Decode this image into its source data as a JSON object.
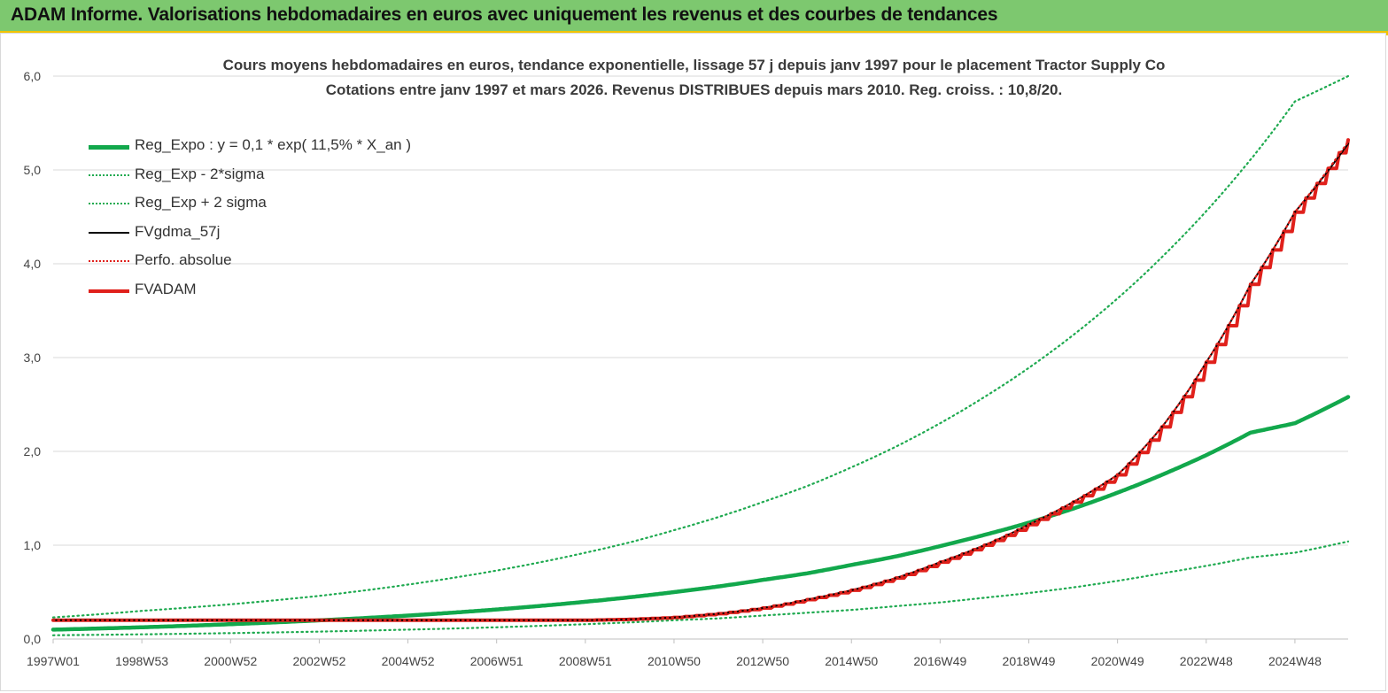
{
  "header": {
    "title": "ADAM Informe. Valorisations hebdomadaires en euros avec uniquement les revenus et des courbes de tendances"
  },
  "colors": {
    "banner": "#7dc86f",
    "regression": "#12a84c",
    "sigma": "#1faa50",
    "fvgdma": "#000000",
    "perfo": "#e0201b",
    "fvadam": "#e0201b",
    "grid": "#d9d9d9"
  },
  "chart_data": {
    "type": "line",
    "title": "Cours moyens hebdomadaires en euros, tendance exponentielle, lissage 57 j depuis janv 1997 pour le placement Tractor Supply Co",
    "subtitle": "Cotations entre janv 1997 et mars 2026. Revenus DISTRIBUES depuis mars 2010. Reg. croiss. : 10,8/20.",
    "xlabel": "",
    "ylabel": "",
    "ylim": [
      0,
      6
    ],
    "yticks": [
      0,
      1,
      2,
      3,
      4,
      5,
      6
    ],
    "ytick_labels": [
      "0,0",
      "1,0",
      "2,0",
      "3,0",
      "4,0",
      "5,0",
      "6,0"
    ],
    "xlim": [
      1997.0,
      2026.2
    ],
    "x_tick_labels": [
      "1997W01",
      "1998W53",
      "2000W52",
      "2002W52",
      "2004W52",
      "2006W51",
      "2008W51",
      "2010W50",
      "2012W50",
      "2014W50",
      "2016W49",
      "2018W49",
      "2020W49",
      "2022W48",
      "2024W48"
    ],
    "x_tick_values": [
      1997.0,
      1999.0,
      2001.0,
      2003.0,
      2005.0,
      2007.0,
      2009.0,
      2011.0,
      2013.0,
      2015.0,
      2017.0,
      2019.0,
      2021.0,
      2023.0,
      2025.0
    ],
    "grid": true,
    "legend_position": "top-left",
    "x": [
      1997,
      1999,
      2001,
      2003,
      2005,
      2007,
      2009,
      2010,
      2011,
      2012,
      2013,
      2014,
      2015,
      2016,
      2017,
      2018,
      2019,
      2020,
      2021,
      2022,
      2023,
      2024,
      2025,
      2026.2
    ],
    "series": [
      {
        "name": "Reg_Expo : y = 0,1 * exp( 11,5% *  X_an )",
        "style": "solid-thick",
        "color": "#12a84c",
        "values": [
          0.1,
          0.125,
          0.158,
          0.199,
          0.25,
          0.315,
          0.397,
          0.445,
          0.5,
          0.56,
          0.63,
          0.7,
          0.79,
          0.88,
          0.99,
          1.11,
          1.24,
          1.39,
          1.56,
          1.75,
          1.96,
          2.2,
          2.3,
          2.58
        ]
      },
      {
        "name": "Reg_Exp - 2*sigma",
        "style": "dotted",
        "color": "#1faa50",
        "values": [
          0.04,
          0.05,
          0.063,
          0.079,
          0.1,
          0.125,
          0.158,
          0.177,
          0.2,
          0.22,
          0.25,
          0.28,
          0.31,
          0.35,
          0.39,
          0.44,
          0.49,
          0.55,
          0.62,
          0.7,
          0.78,
          0.87,
          0.92,
          1.04
        ]
      },
      {
        "name": "Reg_Exp + 2 sigma",
        "style": "dotted",
        "color": "#1faa50",
        "values": [
          0.23,
          0.3,
          0.37,
          0.46,
          0.58,
          0.73,
          0.92,
          1.03,
          1.16,
          1.3,
          1.46,
          1.63,
          1.83,
          2.05,
          2.3,
          2.58,
          2.89,
          3.24,
          3.63,
          4.07,
          4.56,
          5.11,
          5.73,
          6.0
        ]
      },
      {
        "name": "FVgdma_57j",
        "style": "solid",
        "color": "#000000",
        "values": [
          0.2,
          0.2,
          0.2,
          0.2,
          0.2,
          0.2,
          0.2,
          0.21,
          0.23,
          0.27,
          0.33,
          0.42,
          0.52,
          0.65,
          0.82,
          1.0,
          1.22,
          1.46,
          1.75,
          2.26,
          2.95,
          3.78,
          4.55,
          5.28
        ]
      },
      {
        "name": "Perfo. absolue",
        "style": "dotted",
        "color": "#e0201b",
        "values": [
          0.2,
          0.2,
          0.2,
          0.2,
          0.2,
          0.2,
          0.2,
          0.21,
          0.23,
          0.27,
          0.33,
          0.42,
          0.52,
          0.65,
          0.82,
          1.0,
          1.22,
          1.46,
          1.75,
          2.26,
          2.95,
          3.78,
          4.55,
          5.3
        ]
      },
      {
        "name": "FVADAM",
        "style": "staircase-thick",
        "color": "#e0201b",
        "values": [
          0.2,
          0.2,
          0.2,
          0.2,
          0.2,
          0.2,
          0.2,
          0.21,
          0.23,
          0.27,
          0.33,
          0.42,
          0.52,
          0.65,
          0.82,
          1.0,
          1.22,
          1.46,
          1.75,
          2.26,
          2.95,
          3.78,
          4.55,
          5.32
        ]
      }
    ]
  }
}
